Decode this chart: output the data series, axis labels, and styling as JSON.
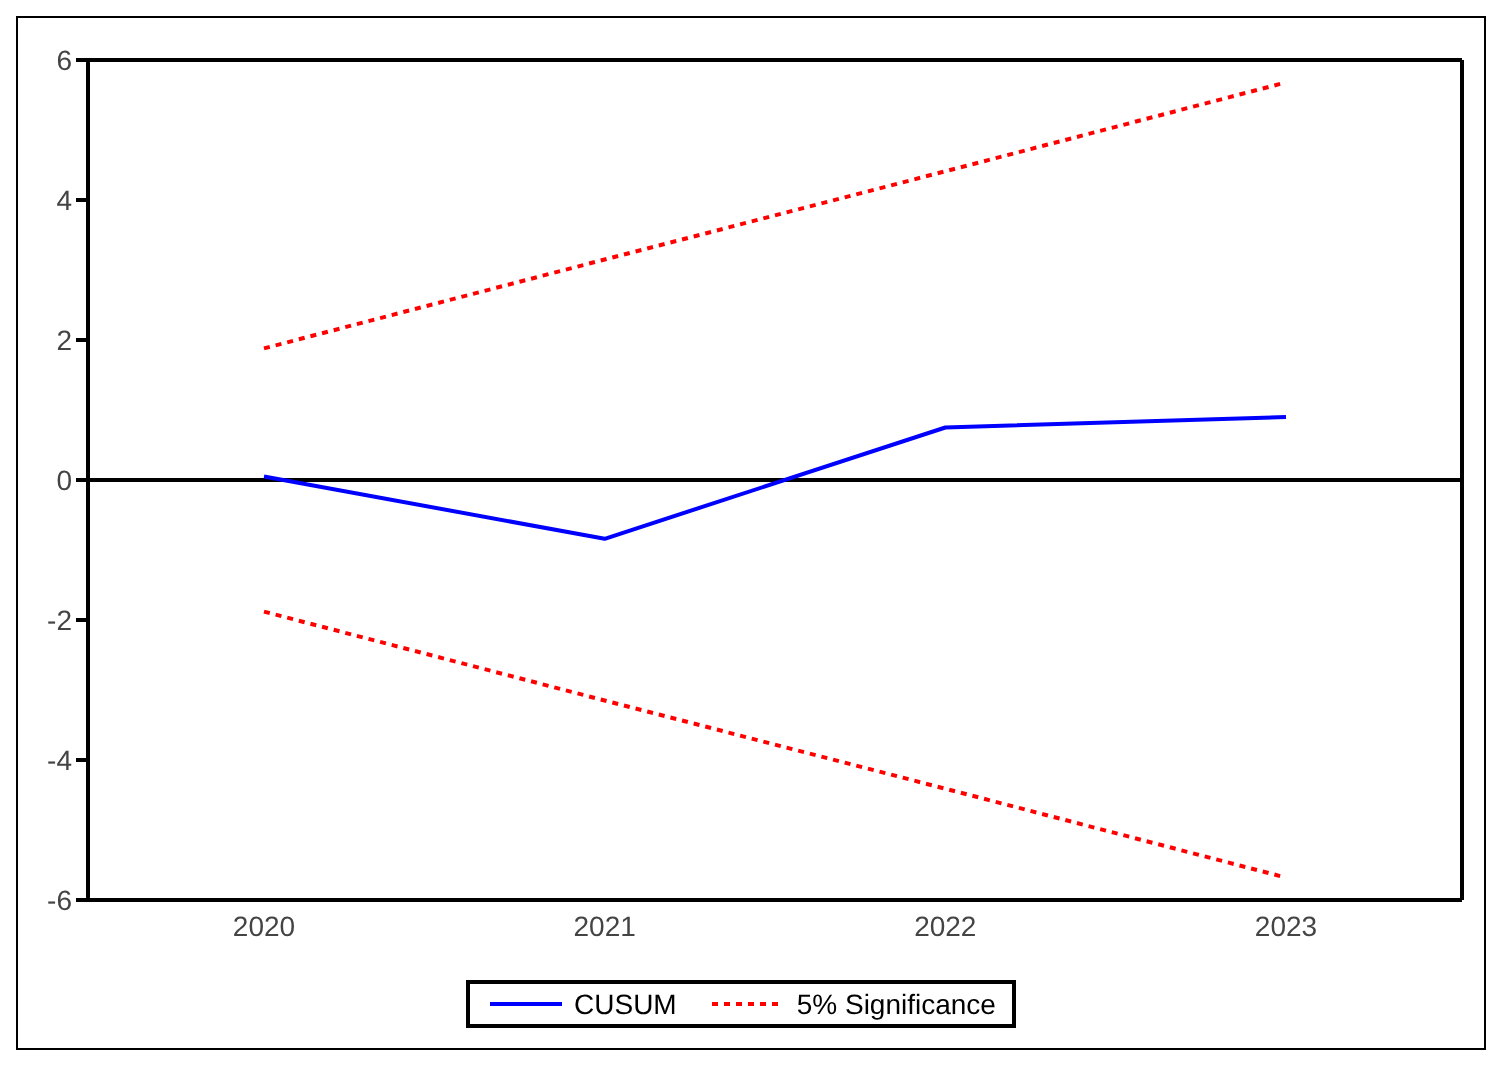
{
  "chart_data": {
    "type": "line",
    "categories": [
      "2020",
      "2021",
      "2022",
      "2023"
    ],
    "series": [
      {
        "name": "CUSUM",
        "color": "#0000ff",
        "values": [
          0.05,
          -0.84,
          0.75,
          0.9
        ],
        "line_style": "solid"
      },
      {
        "name": "5% Significance",
        "color": "#ff0000",
        "values": [
          1.88,
          3.15,
          4.41,
          5.68
        ],
        "line_style": "dotted"
      },
      {
        "color": "#ff0000",
        "values": [
          -1.88,
          -3.15,
          -4.41,
          -5.68
        ],
        "line_style": "dotted"
      }
    ],
    "ylim": [
      -6,
      6
    ],
    "yticks": [
      -6,
      -4,
      -2,
      0,
      2,
      4,
      6
    ],
    "ref_lines": [
      {
        "axis": "y",
        "value": 0,
        "color": "#000000"
      }
    ],
    "grid": false,
    "legend": "bottom",
    "marker": "none"
  }
}
